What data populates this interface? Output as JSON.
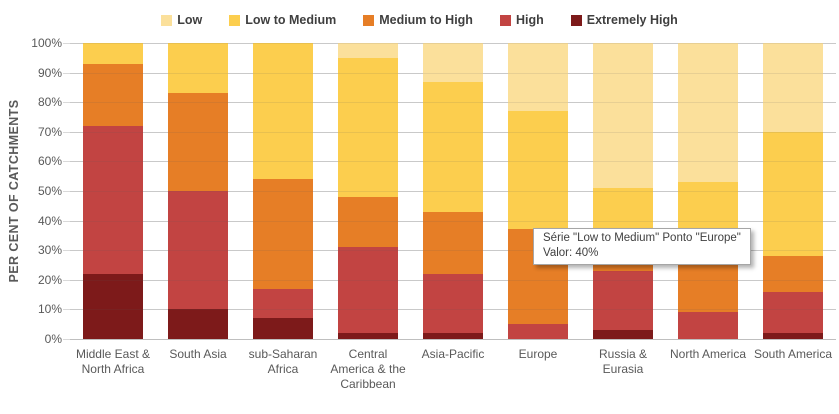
{
  "chart_data": {
    "type": "bar",
    "stacked": true,
    "orientation": "vertical",
    "ylabel": "PER CENT OF CATCHMENTS",
    "ylim": [
      0,
      100
    ],
    "yticks": [
      "0%",
      "10%",
      "20%",
      "30%",
      "40%",
      "50%",
      "60%",
      "70%",
      "80%",
      "90%",
      "100%"
    ],
    "grid": true,
    "legend_position": "top",
    "legend_order": [
      "Low",
      "Low to Medium",
      "Medium to High",
      "High",
      "Extremely High"
    ],
    "categories": [
      "Middle East & North Africa",
      "South Asia",
      "sub-Saharan Africa",
      "Central America & the Caribbean",
      "Asia-Pacific",
      "Europe",
      "Russia & Eurasia",
      "North America",
      "South America"
    ],
    "category_lines": [
      [
        "Middle East &",
        "North Africa"
      ],
      [
        "South Asia"
      ],
      [
        "sub-Saharan",
        "Africa"
      ],
      [
        "Central",
        "America & the",
        "Caribbean"
      ],
      [
        "Asia-Pacific"
      ],
      [
        "Europe"
      ],
      [
        "Russia &",
        "Eurasia"
      ],
      [
        "North America"
      ],
      [
        "South America"
      ]
    ],
    "series": [
      {
        "name": "Extremely High",
        "color": "#7d1a1a",
        "values": [
          22,
          10,
          7,
          2,
          2,
          0,
          3,
          0,
          2
        ]
      },
      {
        "name": "High",
        "color": "#c24442",
        "values": [
          50,
          40,
          10,
          29,
          20,
          5,
          20,
          9,
          14
        ]
      },
      {
        "name": "Medium to High",
        "color": "#e67e26",
        "values": [
          21,
          33,
          37,
          17,
          21,
          32,
          13,
          27,
          12
        ]
      },
      {
        "name": "Low to Medium",
        "color": "#fcce4e",
        "values": [
          7,
          17,
          46,
          47,
          44,
          40,
          15,
          17,
          42
        ]
      },
      {
        "name": "Low",
        "color": "#fbe09b",
        "values": [
          0,
          0,
          0,
          5,
          13,
          23,
          49,
          47,
          30
        ]
      }
    ]
  },
  "tooltip": {
    "line1": "Série \"Low to Medium\" Ponto \"Europe\"",
    "line2": "Valor: 40%"
  }
}
